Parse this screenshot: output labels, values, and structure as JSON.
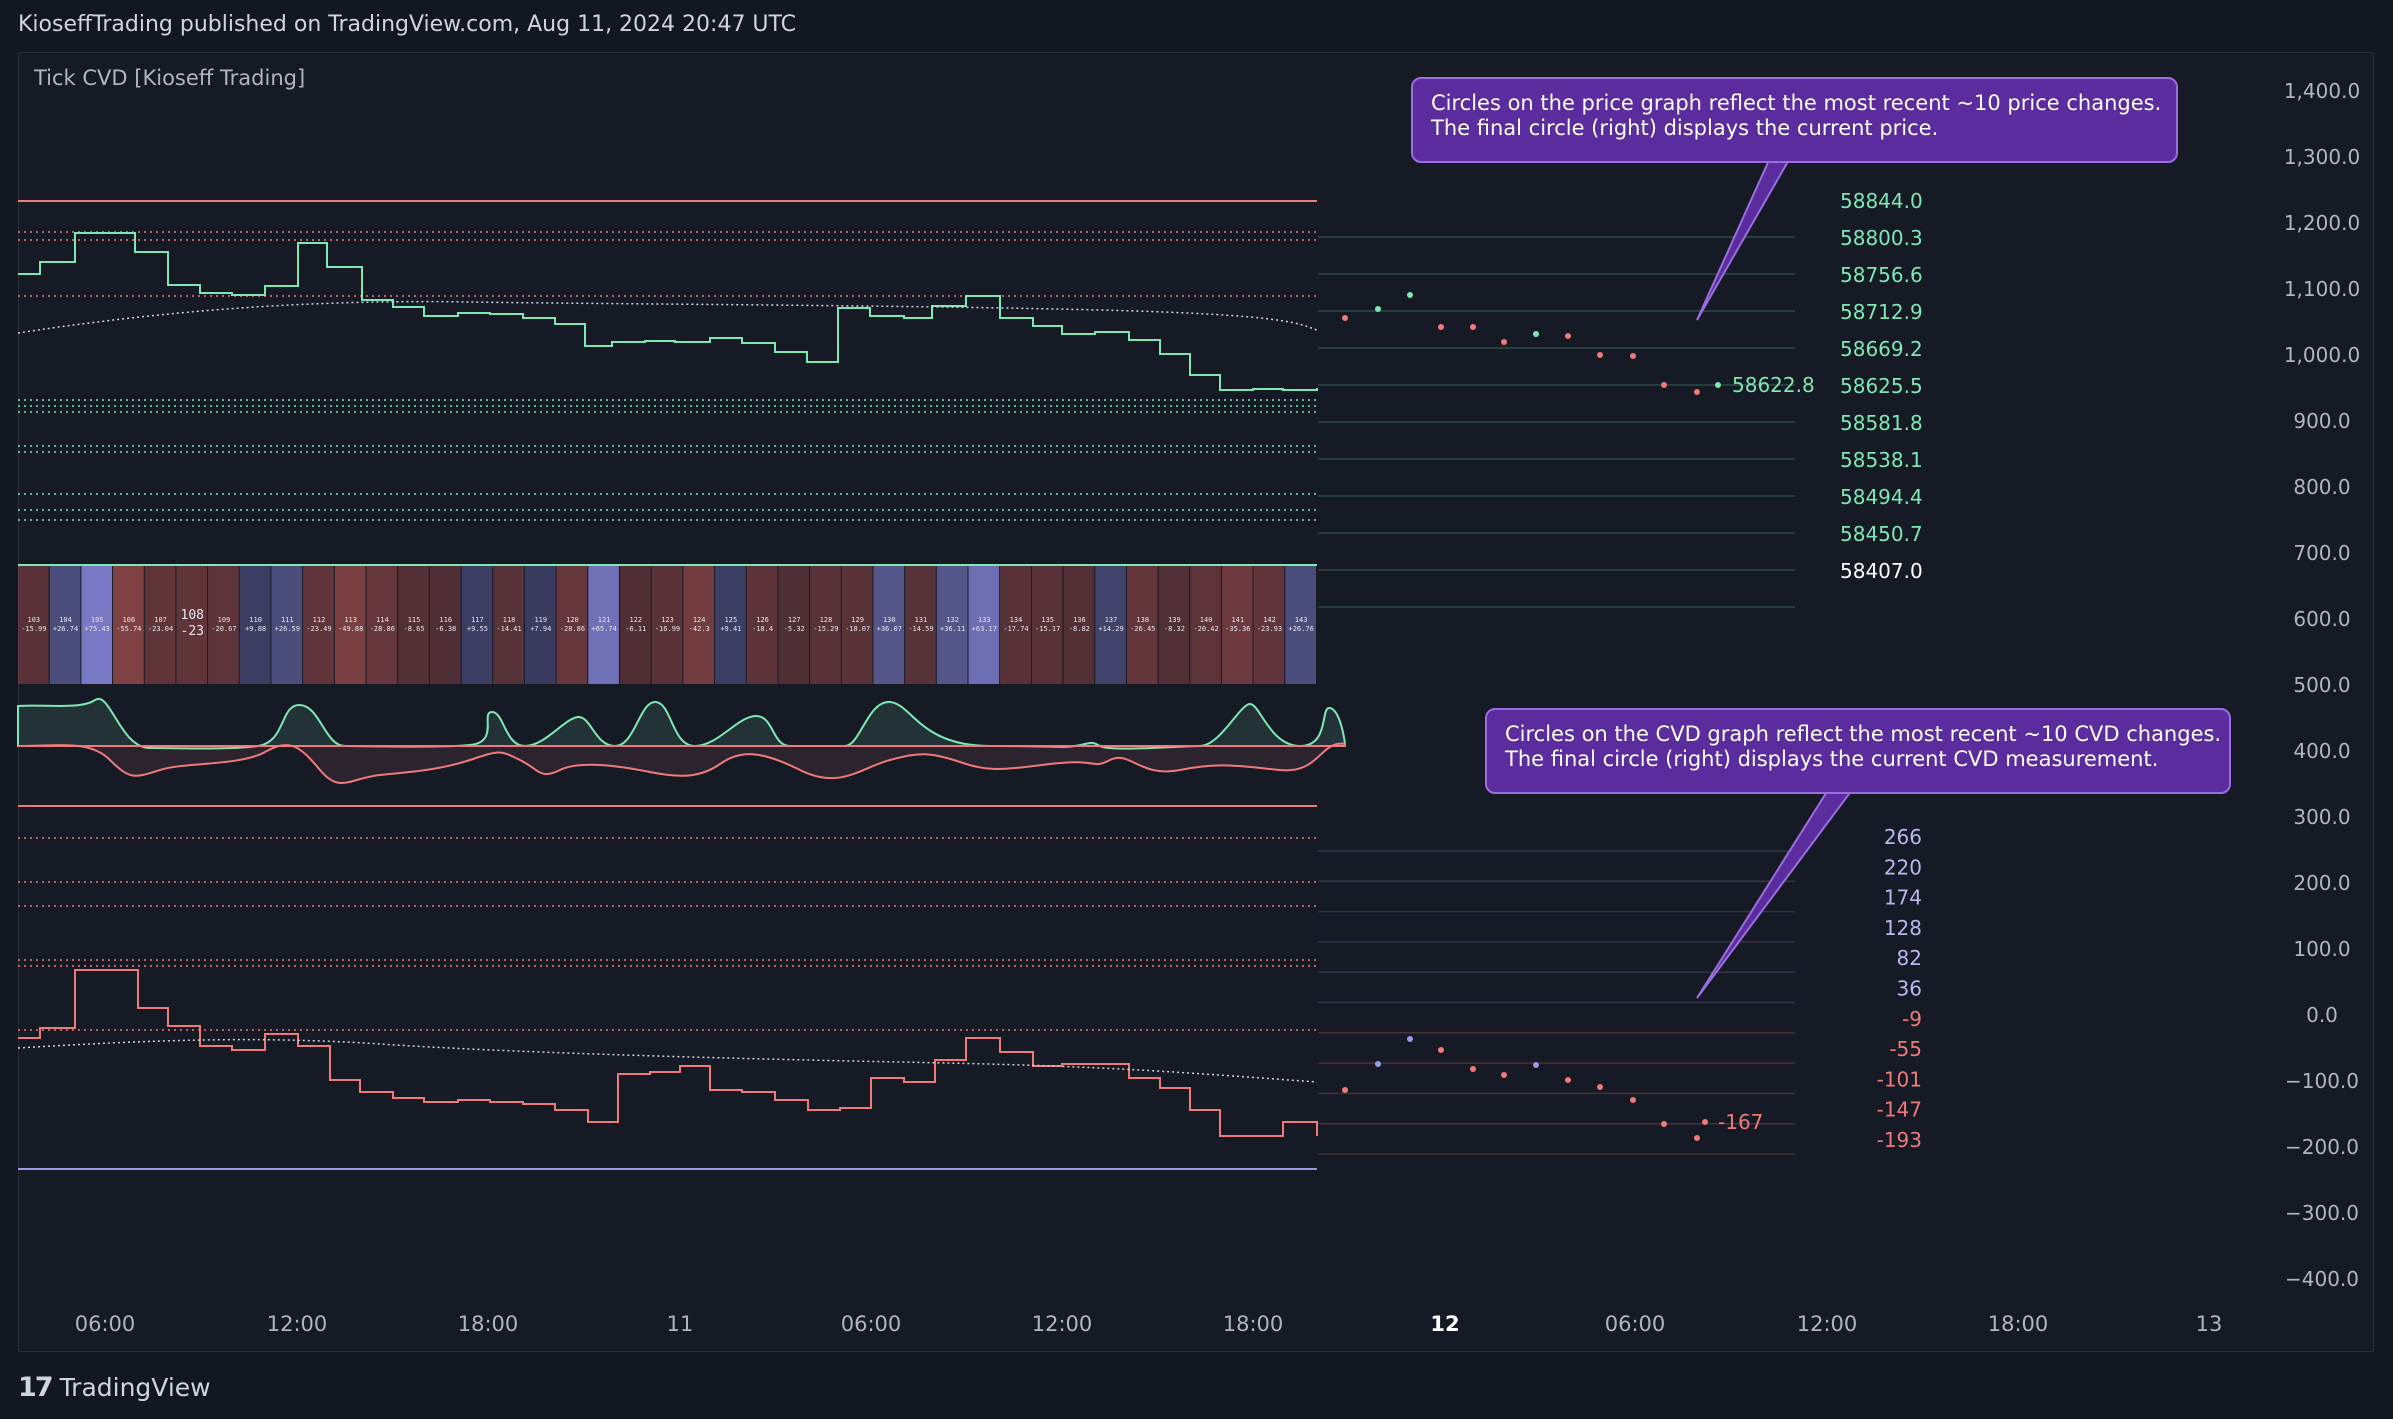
{
  "header": {
    "publish_text": "KioseffTrading published on TradingView.com, Aug 11, 2024 20:47 UTC"
  },
  "indicator": {
    "name": "Tick CVD [Kioseff Trading]"
  },
  "footer": {
    "brand": "TradingView",
    "logo_mark": "17"
  },
  "callouts": {
    "price": {
      "line1": "Circles on the price graph reflect the most recent ~10 price changes.",
      "line2": "The final circle (right) displays the current price."
    },
    "cvd": {
      "line1": "Circles on the CVD graph reflect the most recent ~10 CVD changes.",
      "line2": "The final circle (right) displays the current CVD measurement."
    }
  },
  "right_axis": {
    "labels": [
      "1,400.0",
      "1,300.0",
      "1,200.0",
      "1,100.0",
      "1,000.0",
      "900.0",
      "800.0",
      "700.0",
      "600.0",
      "500.0",
      "400.0",
      "300.0",
      "200.0",
      "100.0",
      "0.0",
      "−100.0",
      "−200.0",
      "−300.0",
      "−400.0"
    ]
  },
  "time_axis": {
    "labels": [
      "06:00",
      "12:00",
      "18:00",
      "11",
      "06:00",
      "12:00",
      "18:00",
      "12",
      "06:00",
      "12:00",
      "18:00",
      "13"
    ]
  },
  "price_levels": {
    "labels": [
      "58844.0",
      "58800.3",
      "58756.6",
      "58712.9",
      "58669.2",
      "58625.5",
      "58581.8",
      "58538.1",
      "58494.4",
      "58450.7",
      "58407.0"
    ]
  },
  "current_price": "58622.8",
  "cvd_levels": {
    "labels": [
      "266",
      "220",
      "174",
      "128",
      "82",
      "36",
      "-9",
      "-55",
      "-101",
      "-147",
      "-193"
    ]
  },
  "current_cvd": "-167",
  "heatmap": {
    "cells": [
      {
        "id": "103",
        "val": "-15.99"
      },
      {
        "id": "104",
        "val": "+26.74"
      },
      {
        "id": "105",
        "val": "+75.43"
      },
      {
        "id": "106",
        "val": "-55.74"
      },
      {
        "id": "107",
        "val": "-23.04"
      },
      {
        "id": "108",
        "val": "-23"
      },
      {
        "id": "109",
        "val": "-20.67"
      },
      {
        "id": "110",
        "val": "+9.88"
      },
      {
        "id": "111",
        "val": "+26.59"
      },
      {
        "id": "112",
        "val": "-23.49"
      },
      {
        "id": "113",
        "val": "-49.88"
      },
      {
        "id": "114",
        "val": "-28.86"
      },
      {
        "id": "115",
        "val": "-8.65"
      },
      {
        "id": "116",
        "val": "-6.38"
      },
      {
        "id": "117",
        "val": "+9.55"
      },
      {
        "id": "118",
        "val": "-14.41"
      },
      {
        "id": "119",
        "val": "+7.94"
      },
      {
        "id": "120",
        "val": "-28.86"
      },
      {
        "id": "121",
        "val": "+65.74"
      },
      {
        "id": "122",
        "val": "-6.11"
      },
      {
        "id": "123",
        "val": "-16.99"
      },
      {
        "id": "124",
        "val": "-42.3"
      },
      {
        "id": "125",
        "val": "+9.41"
      },
      {
        "id": "126",
        "val": "-18.4"
      },
      {
        "id": "127",
        "val": "-5.32"
      },
      {
        "id": "128",
        "val": "-15.29"
      },
      {
        "id": "129",
        "val": "-18.07"
      },
      {
        "id": "130",
        "val": "+36.07"
      },
      {
        "id": "131",
        "val": "-14.59"
      },
      {
        "id": "132",
        "val": "+36.11"
      },
      {
        "id": "133",
        "val": "+63.17"
      },
      {
        "id": "134",
        "val": "-17.74"
      },
      {
        "id": "135",
        "val": "-15.17"
      },
      {
        "id": "136",
        "val": "-8.82"
      },
      {
        "id": "137",
        "val": "+14.29"
      },
      {
        "id": "138",
        "val": "-26.45"
      },
      {
        "id": "139",
        "val": "-8.32"
      },
      {
        "id": "140",
        "val": "-20.42"
      },
      {
        "id": "141",
        "val": "-35.36"
      },
      {
        "id": "142",
        "val": "-23.93"
      },
      {
        "id": "143",
        "val": "+26.76"
      }
    ]
  },
  "colors": {
    "background": "#131722",
    "panel": "#161a25",
    "grid": "#2a2e39",
    "green": "#7ee8b4",
    "red": "#f07a7a",
    "purple": "#9b6ee0",
    "axis_text": "#b2b5be",
    "heat_neg": "#a85050",
    "heat_pos": "#8a8ae0"
  }
}
